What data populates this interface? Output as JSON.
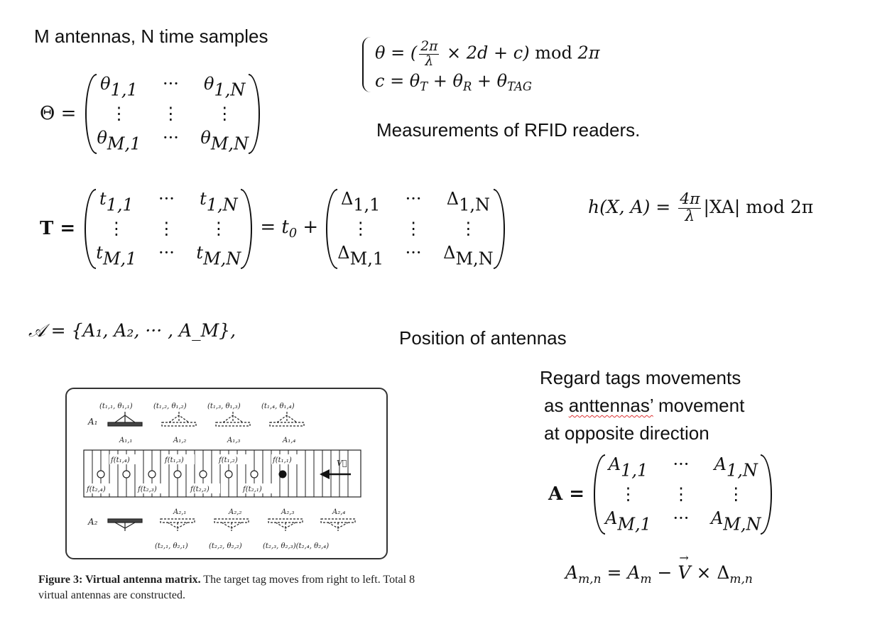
{
  "notes": {
    "m_antennas": "M antennas, N time samples",
    "measurements": "Measurements of RFID readers.",
    "position": "Position of antennas",
    "regard_line1": "Regard tags movements",
    "regard_line2_pre": "as ",
    "regard_line2_word": "anttennas’",
    "regard_line2_post": " movement",
    "regard_line3": "at opposite direction"
  },
  "equations": {
    "theta_matrix_symbol": "Θ =",
    "T_matrix_symbol": "T =",
    "eq_t0": "= t",
    "plus": "+",
    "A_set": "𝒜 = {A₁, A₂, ··· , A_M},",
    "A_matrix_symbol": "A =",
    "h_lhs": "h(X, A) =",
    "h_rhs": "|XA| mod 2π",
    "A_mn": "A_{m,n} = A_m − V⃗ × Δ_{m,n}"
  },
  "figure": {
    "caption_bold": "Figure 3:  Virtual antenna matrix.",
    "caption_text": "  The target tag moves from right to left. Total 8 virtual antennas are constructed.",
    "top_labels": [
      "(t₁,₁, θ₁,₁)",
      "(t₁,₂, θ₁,₂)",
      "(t₁,₃, θ₁,₃)",
      "(t₁,₄, θ₁,₄)"
    ],
    "top_antennas": [
      "A₁,₁",
      "A₁,₂",
      "A₁,₃",
      "A₁,₄"
    ],
    "bottom_antennas": [
      "A₂,₁",
      "A₂,₂",
      "A₂,₃",
      "A₂,₄"
    ],
    "bottom_labels": [
      "(t₂,₁, θ₂,₁)",
      "(t₂,₂, θ₂,₂)",
      "(t₂,₃, θ₂,₃)(t₂,₄, θ₂,₄)"
    ],
    "upper_f": [
      "f(t₁,₄)",
      "f(t₁,₃)",
      "f(t₁,₂)",
      "f(t₁,₁)"
    ],
    "lower_f": [
      "f(t₂,₄)",
      "f(t₂,₃)",
      "f(t₂,₂)",
      "f(t₂,₁)"
    ],
    "a1_label": "A₁",
    "a2_label": "A₂",
    "v_label": "V⃗"
  }
}
